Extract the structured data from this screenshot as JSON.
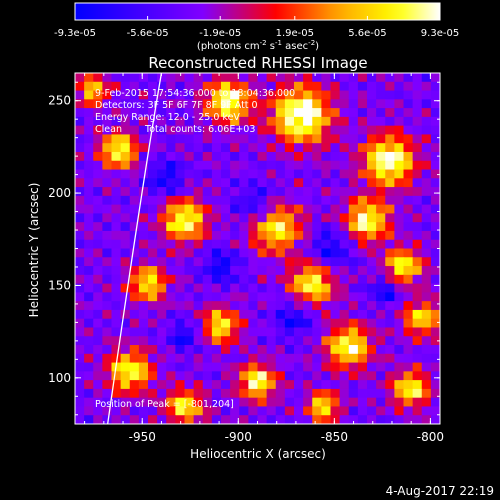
{
  "chart_data": {
    "type": "heatmap",
    "title": "Reconstructed RHESSI Image",
    "xlabel": "Heliocentric X (arcsec)",
    "ylabel": "Heliocentric Y (arcsec)",
    "xlim": [
      -985,
      -795
    ],
    "ylim": [
      75,
      265
    ],
    "x_ticks": [
      -950,
      -900,
      -850,
      -800
    ],
    "x_tick_labels": [
      "-950",
      "-900",
      "-850",
      "-800"
    ],
    "y_ticks": [
      100,
      150,
      200,
      250
    ],
    "y_tick_labels": [
      "100",
      "150",
      "200",
      "250"
    ],
    "colorbar": {
      "ticks": [
        -9.3e-05,
        -5.6e-05,
        -1.9e-05,
        1.9e-05,
        5.6e-05,
        9.3e-05
      ],
      "tick_labels": [
        "-9.3e-05",
        "-5.6e-05",
        "-1.9e-05",
        "1.9e-05",
        "5.6e-05",
        "9.3e-05"
      ],
      "unit_parts": [
        "(photons cm",
        "-2",
        " s",
        "-1",
        " asec",
        "-2",
        ")"
      ],
      "colors": [
        "#0000ff",
        "#8000ff",
        "#ff0000",
        "#ffa500",
        "#ffff00",
        "#ffffff"
      ]
    },
    "annotations": {
      "time_range": "9-Feb-2015 17:54:36.000 to 18:04:36.000",
      "detectors": "Detectors: 3F 5F 6F 7F 8F 9F Att 0",
      "energy": "Energy Range: 12.0 - 25.0 keV",
      "clean": "Clean",
      "counts": "Total counts: 6.06E+03",
      "peak": "Position of Peak = [-801,204]"
    },
    "limb": [
      [
        -968,
        75
      ],
      [
        -950,
        205
      ],
      [
        -940,
        265
      ]
    ],
    "grid": {
      "nx": 40,
      "ny": 40
    }
  },
  "footer": {
    "timestamp": "4-Aug-2017 22:19"
  }
}
